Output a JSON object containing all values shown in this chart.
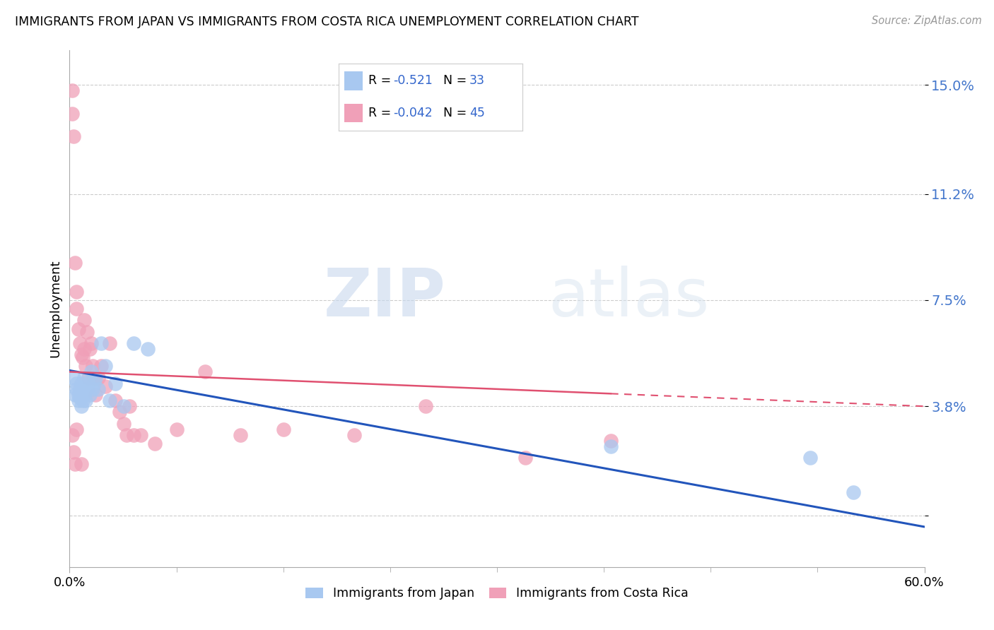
{
  "title": "IMMIGRANTS FROM JAPAN VS IMMIGRANTS FROM COSTA RICA UNEMPLOYMENT CORRELATION CHART",
  "source": "Source: ZipAtlas.com",
  "ylabel": "Unemployment",
  "color_japan": "#a8c8f0",
  "color_costarica": "#f0a0b8",
  "line_color_japan": "#2255bb",
  "line_color_costarica": "#e05070",
  "watermark_zip": "ZIP",
  "watermark_atlas": "atlas",
  "xlim": [
    0.0,
    0.6
  ],
  "ylim": [
    -0.018,
    0.162
  ],
  "yticks": [
    0.0,
    0.038,
    0.075,
    0.112,
    0.15
  ],
  "ytick_labels": [
    "",
    "3.8%",
    "7.5%",
    "11.2%",
    "15.0%"
  ],
  "xtick_minor_positions": [
    0.0,
    0.075,
    0.15,
    0.225,
    0.3,
    0.375,
    0.45,
    0.525,
    0.6
  ],
  "japan_x": [
    0.003,
    0.004,
    0.005,
    0.005,
    0.006,
    0.006,
    0.007,
    0.007,
    0.008,
    0.008,
    0.009,
    0.009,
    0.01,
    0.01,
    0.011,
    0.012,
    0.013,
    0.014,
    0.015,
    0.016,
    0.017,
    0.018,
    0.02,
    0.022,
    0.025,
    0.028,
    0.032,
    0.038,
    0.045,
    0.055,
    0.38,
    0.52,
    0.55
  ],
  "japan_y": [
    0.048,
    0.042,
    0.046,
    0.044,
    0.042,
    0.04,
    0.044,
    0.041,
    0.046,
    0.038,
    0.044,
    0.04,
    0.048,
    0.042,
    0.04,
    0.044,
    0.046,
    0.042,
    0.05,
    0.044,
    0.046,
    0.048,
    0.044,
    0.06,
    0.052,
    0.04,
    0.046,
    0.038,
    0.06,
    0.058,
    0.024,
    0.02,
    0.008
  ],
  "costarica_x": [
    0.002,
    0.002,
    0.003,
    0.004,
    0.005,
    0.005,
    0.006,
    0.007,
    0.008,
    0.009,
    0.01,
    0.01,
    0.011,
    0.012,
    0.013,
    0.014,
    0.015,
    0.016,
    0.017,
    0.018,
    0.02,
    0.022,
    0.025,
    0.028,
    0.032,
    0.035,
    0.038,
    0.04,
    0.042,
    0.045,
    0.05,
    0.06,
    0.075,
    0.095,
    0.12,
    0.15,
    0.2,
    0.25,
    0.32,
    0.38,
    0.002,
    0.003,
    0.004,
    0.005,
    0.008
  ],
  "costarica_y": [
    0.148,
    0.14,
    0.132,
    0.088,
    0.078,
    0.072,
    0.065,
    0.06,
    0.056,
    0.055,
    0.068,
    0.058,
    0.052,
    0.064,
    0.048,
    0.058,
    0.06,
    0.052,
    0.048,
    0.042,
    0.048,
    0.052,
    0.045,
    0.06,
    0.04,
    0.036,
    0.032,
    0.028,
    0.038,
    0.028,
    0.028,
    0.025,
    0.03,
    0.05,
    0.028,
    0.03,
    0.028,
    0.038,
    0.02,
    0.026,
    0.028,
    0.022,
    0.018,
    0.03,
    0.018
  ],
  "japan_line": {
    "x0": 0.0,
    "y0": 0.0505,
    "x1": 0.6,
    "y1": -0.004
  },
  "costarica_line": {
    "x0": 0.0,
    "y0": 0.05,
    "x1": 0.6,
    "y1": 0.038
  }
}
